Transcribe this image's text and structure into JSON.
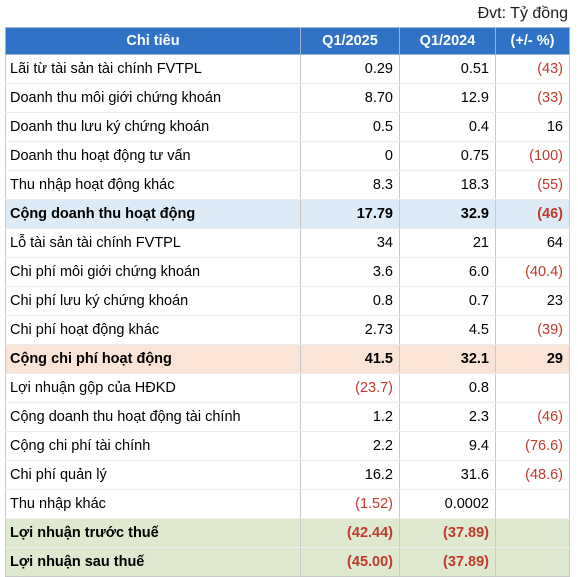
{
  "unit_label": "Đvt: Tỷ đồng",
  "columns": [
    "Chỉ tiêu",
    "Q1/2025",
    "Q1/2024",
    "(+/- %)"
  ],
  "rows": [
    {
      "label": "Lãi từ tài sản tài chính FVTPL",
      "q1_2025": "0.29",
      "q1_2024": "0.51",
      "change": "(43)",
      "style": ""
    },
    {
      "label": "Doanh thu môi giới chứng khoán",
      "q1_2025": "8.70",
      "q1_2024": "12.9",
      "change": "(33)",
      "style": ""
    },
    {
      "label": "Doanh thu lưu ký chứng khoán",
      "q1_2025": "0.5",
      "q1_2024": "0.4",
      "change": "16",
      "style": ""
    },
    {
      "label": "Doanh thu hoạt động tư vấn",
      "q1_2025": "0",
      "q1_2024": "0.75",
      "change": "(100)",
      "style": ""
    },
    {
      "label": "Thu nhập hoạt động khác",
      "q1_2025": "8.3",
      "q1_2024": "18.3",
      "change": "(55)",
      "style": ""
    },
    {
      "label": "Cộng doanh thu hoạt động",
      "q1_2025": "17.79",
      "q1_2024": "32.9",
      "change": "(46)",
      "style": "bold hl-blue"
    },
    {
      "label": "Lỗ tài sản tài chính FVTPL",
      "q1_2025": "34",
      "q1_2024": "21",
      "change": "64",
      "style": ""
    },
    {
      "label": "Chi phí môi giới chứng khoán",
      "q1_2025": "3.6",
      "q1_2024": "6.0",
      "change": "(40.4)",
      "style": ""
    },
    {
      "label": "Chi phí lưu ký chứng khoán",
      "q1_2025": "0.8",
      "q1_2024": "0.7",
      "change": "23",
      "style": ""
    },
    {
      "label": "Chi phí hoạt động khác",
      "q1_2025": "2.73",
      "q1_2024": "4.5",
      "change": "(39)",
      "style": ""
    },
    {
      "label": "Cộng chi phí hoạt động",
      "q1_2025": "41.5",
      "q1_2024": "32.1",
      "change": "29",
      "style": "bold hl-peach"
    },
    {
      "label": "Lợi nhuận gộp của HĐKD",
      "q1_2025": "(23.7)",
      "q1_2024": "0.8",
      "change": "",
      "style": ""
    },
    {
      "label": "Cộng doanh thu hoạt động tài chính",
      "q1_2025": "1.2",
      "q1_2024": "2.3",
      "change": "(46)",
      "style": ""
    },
    {
      "label": "Cộng chi phí tài chính",
      "q1_2025": "2.2",
      "q1_2024": "9.4",
      "change": "(76.6)",
      "style": ""
    },
    {
      "label": "Chi phí quản lý",
      "q1_2025": "16.2",
      "q1_2024": "31.6",
      "change": "(48.6)",
      "style": ""
    },
    {
      "label": "Thu nhập khác",
      "q1_2025": "(1.52)",
      "q1_2024": "0.0002",
      "change": "",
      "style": ""
    },
    {
      "label": "Lợi nhuận trước thuế",
      "q1_2025": "(42.44)",
      "q1_2024": "(37.89)",
      "change": "",
      "style": "bold hl-green"
    },
    {
      "label": "Lợi nhuận sau thuế",
      "q1_2025": "(45.00)",
      "q1_2024": "(37.89)",
      "change": "",
      "style": "bold hl-green"
    }
  ]
}
